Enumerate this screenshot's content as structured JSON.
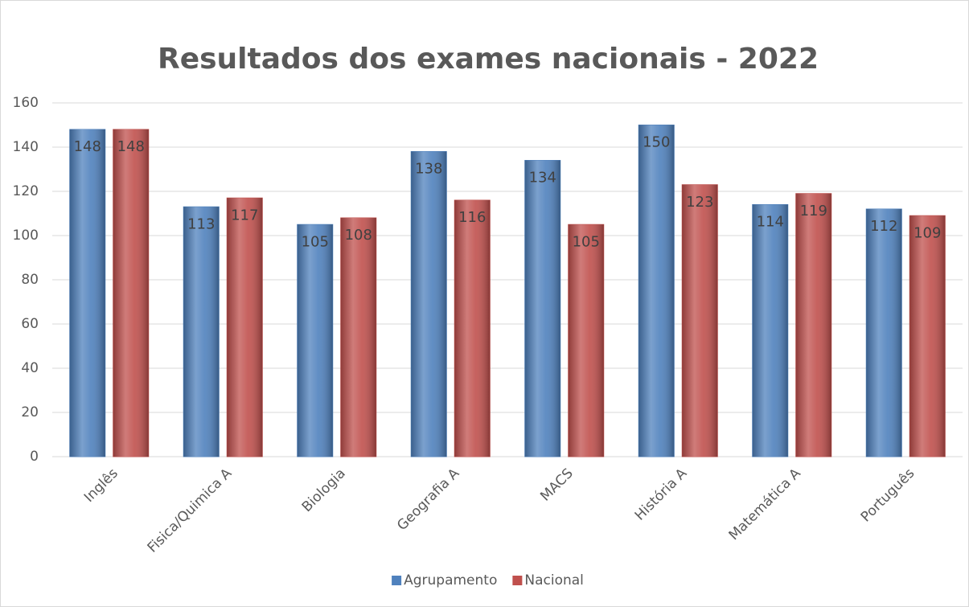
{
  "chart_data": {
    "type": "bar",
    "title": "Resultados dos exames nacionais - 2022",
    "categories": [
      "Inglês",
      "Fisica/Quimica A",
      "Biologia",
      "Geografia A",
      "MACS",
      "História A",
      "Matemática A",
      "Português"
    ],
    "series": [
      {
        "name": "Agrupamento",
        "color": "#4f81bd",
        "values": [
          148,
          113,
          105,
          138,
          134,
          150,
          114,
          112
        ]
      },
      {
        "name": "Nacional",
        "color": "#c0504d",
        "values": [
          148,
          117,
          108,
          116,
          105,
          123,
          119,
          109
        ]
      }
    ],
    "ylim": [
      0,
      160
    ],
    "yticks": [
      0,
      20,
      40,
      60,
      80,
      100,
      120,
      140,
      160
    ],
    "grid": true,
    "legend": "bottom"
  }
}
